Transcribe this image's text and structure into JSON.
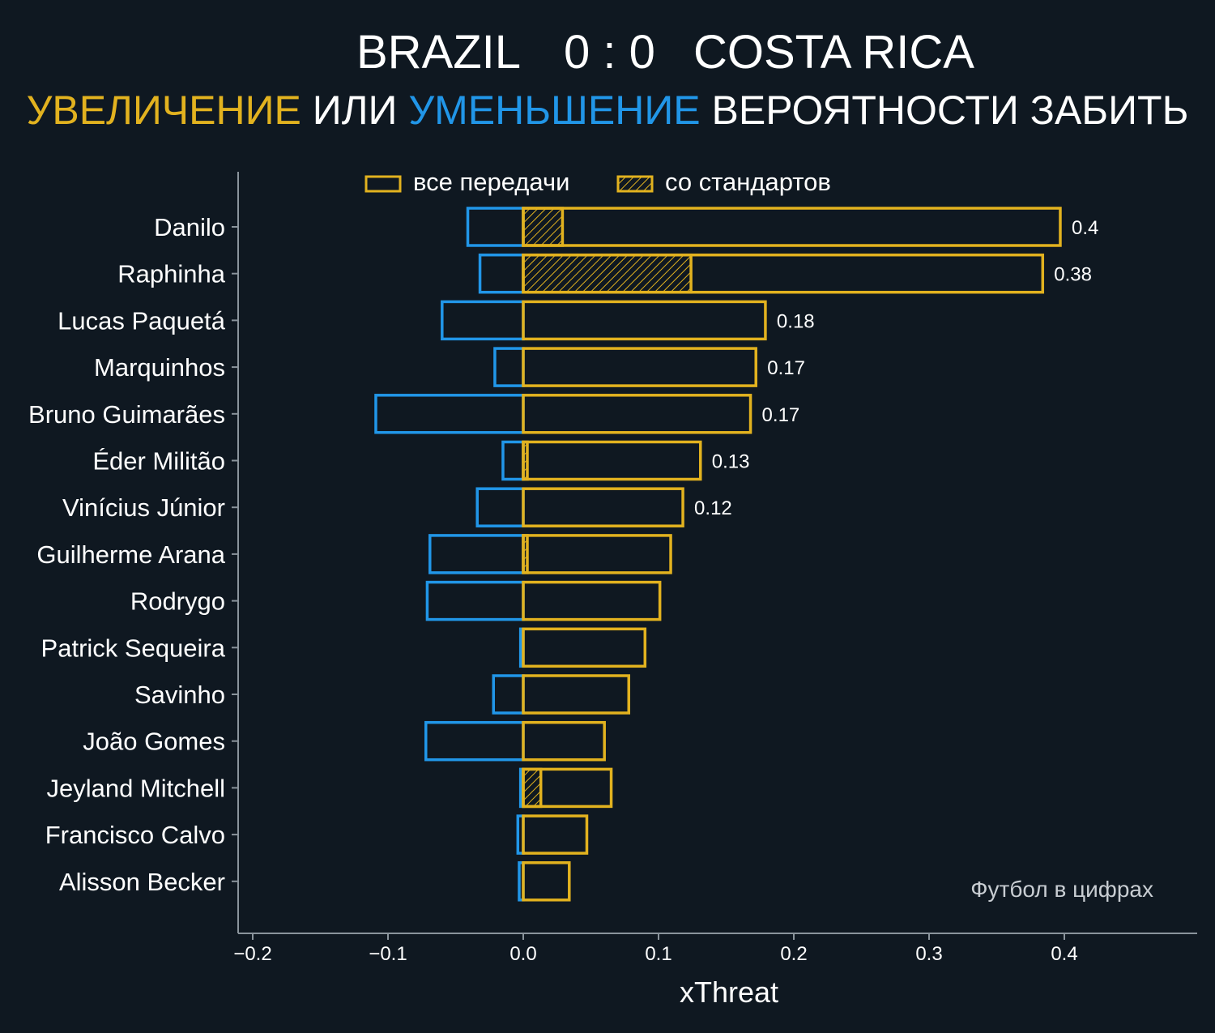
{
  "header": {
    "home_team": "BRAZIL",
    "score": "0 : 0",
    "away_team": "COSTA RICA"
  },
  "subtitle": {
    "increase": "УВЕЛИЧЕНИЕ",
    "or": " ИЛИ ",
    "decrease": "УМЕНЬШЕНИЕ",
    "rest": " ВЕРОЯТНОСТИ ЗАБИТЬ"
  },
  "colors": {
    "background": "#0f1821",
    "increase": "#e2b21f",
    "decrease": "#2196e8",
    "axis": "#8a949c",
    "text": "#ffffff"
  },
  "watermark": "Футбол в цифрах",
  "chart_data": {
    "type": "bar",
    "orientation": "horizontal",
    "title": "",
    "xlabel": "xThreat",
    "ylabel": "",
    "xlim": [
      -0.21,
      0.5
    ],
    "xticks": [
      -0.2,
      -0.1,
      0.0,
      0.1,
      0.2,
      0.3,
      0.4
    ],
    "xtick_labels": [
      "−0.2",
      "−0.1",
      "0.0",
      "0.1",
      "0.2",
      "0.3",
      "0.4"
    ],
    "legend": {
      "placement": "top-center",
      "entries": [
        {
          "label": "все передачи",
          "style": "outline"
        },
        {
          "label": "со стандартов",
          "style": "hatched"
        }
      ]
    },
    "categories": [
      "Danilo",
      "Raphinha",
      "Lucas Paquetá",
      "Marquinhos",
      "Bruno Guimarães",
      "Éder Militão",
      "Vinícius Júnior",
      "Guilherme Arana",
      "Rodrygo",
      "Patrick Sequeira",
      "Savinho",
      "João Gomes",
      "Jeyland Mitchell",
      "Francisco Calvo",
      "Alisson Becker"
    ],
    "series": [
      {
        "name": "все передачи",
        "kind": "increase",
        "values": [
          0.397,
          0.384,
          0.179,
          0.172,
          0.168,
          0.131,
          0.118,
          0.109,
          0.101,
          0.09,
          0.078,
          0.06,
          0.065,
          0.047,
          0.034
        ]
      },
      {
        "name": "",
        "kind": "decrease",
        "values": [
          -0.041,
          -0.032,
          -0.06,
          -0.021,
          -0.109,
          -0.015,
          -0.034,
          -0.069,
          -0.071,
          -0.002,
          -0.022,
          -0.072,
          -0.002,
          -0.004,
          -0.003
        ]
      },
      {
        "name": "со стандартов",
        "kind": "set-piece increase",
        "values": [
          0.029,
          0.124,
          0,
          0,
          0,
          0.003,
          0,
          0.003,
          0,
          0,
          0,
          0,
          0.013,
          0,
          0
        ]
      }
    ],
    "value_labels": [
      "0.4",
      "0.38",
      "0.18",
      "0.17",
      "0.17",
      "0.13",
      "0.12",
      "",
      "",
      "",
      "",
      "",
      "",
      "",
      ""
    ],
    "grid": false
  }
}
